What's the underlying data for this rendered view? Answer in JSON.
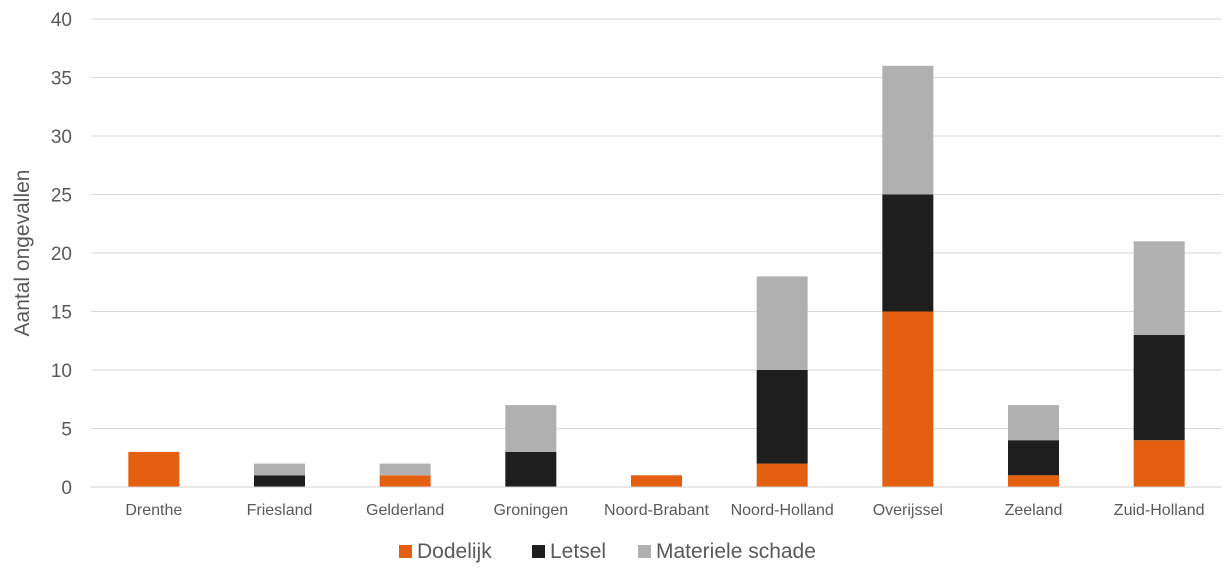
{
  "chart_data": {
    "type": "bar",
    "stacked": true,
    "title": "",
    "xlabel": "",
    "ylabel": "Aantal ongevallen",
    "ylim": [
      0,
      40
    ],
    "yticks": [
      0,
      5,
      10,
      15,
      20,
      25,
      30,
      35,
      40
    ],
    "grid": true,
    "legend_position": "bottom",
    "categories": [
      "Drenthe",
      "Friesland",
      "Gelderland",
      "Groningen",
      "Noord-Brabant",
      "Noord-Holland",
      "Overijssel",
      "Zeeland",
      "Zuid-Holland"
    ],
    "series": [
      {
        "name": "Dodelijk",
        "color": "#e46010",
        "values": [
          3,
          0,
          1,
          0,
          1,
          2,
          15,
          1,
          4
        ]
      },
      {
        "name": "Letsel",
        "color": "#1e1e1e",
        "values": [
          0,
          1,
          0,
          3,
          0,
          8,
          10,
          3,
          9
        ]
      },
      {
        "name": "Materiele schade",
        "color": "#b0b0b0",
        "values": [
          0,
          1,
          1,
          4,
          0,
          8,
          11,
          3,
          8
        ]
      }
    ]
  }
}
